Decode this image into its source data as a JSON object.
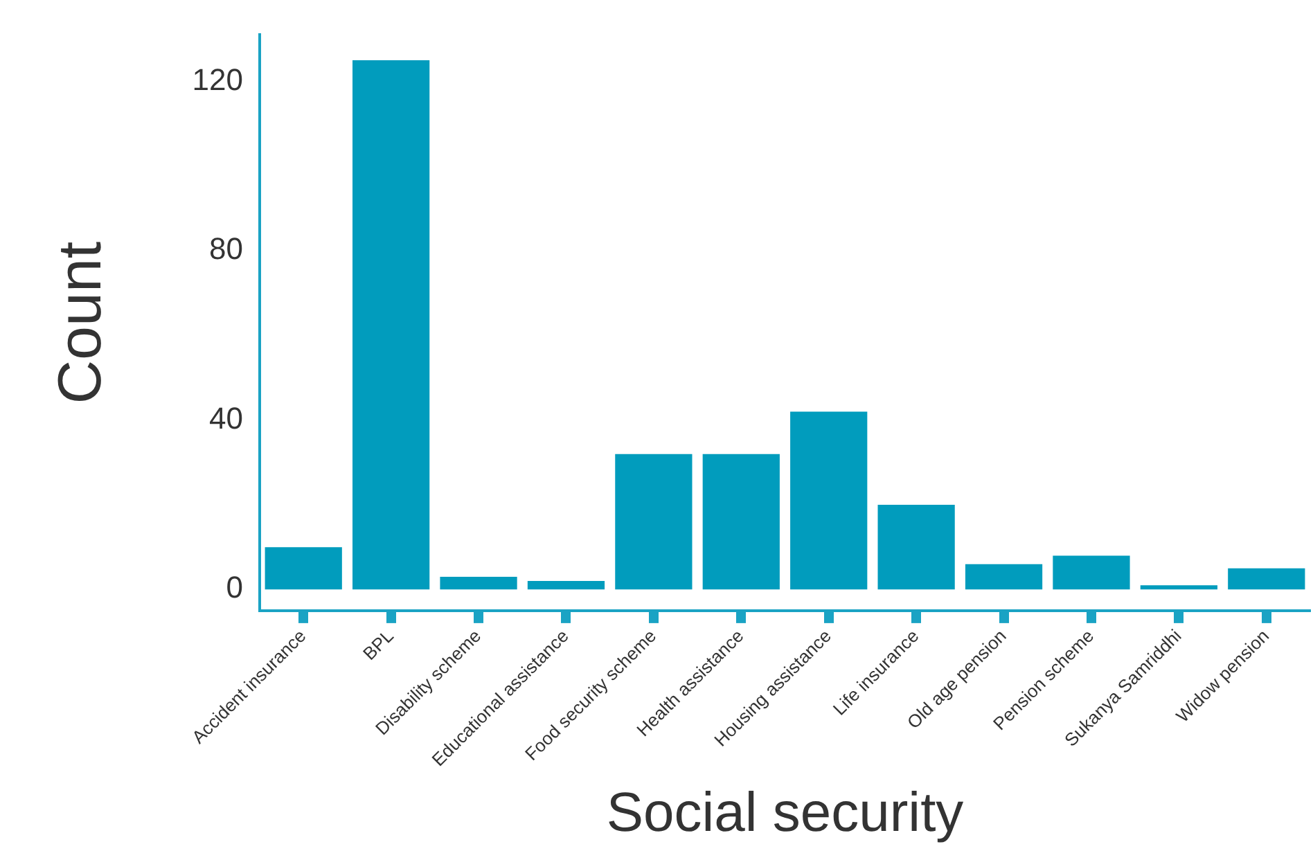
{
  "chart_data": {
    "type": "bar",
    "xlabel": "Social security",
    "ylabel": "Count",
    "categories": [
      "Accident insurance",
      "BPL",
      "Disability scheme",
      "Educational assistance",
      "Food security scheme",
      "Health assistance",
      "Housing assistance",
      "Life insurance",
      "Old age pension",
      "Pension scheme",
      "Sukanya Samriddhi",
      "Widow pension"
    ],
    "values": [
      10,
      125,
      3,
      2,
      32,
      32,
      42,
      20,
      6,
      8,
      1,
      5
    ],
    "color": "#019cbd",
    "ylim": [
      -5,
      131
    ],
    "yticks": [
      0,
      40,
      80,
      120
    ],
    "grid": false,
    "legend": false
  }
}
